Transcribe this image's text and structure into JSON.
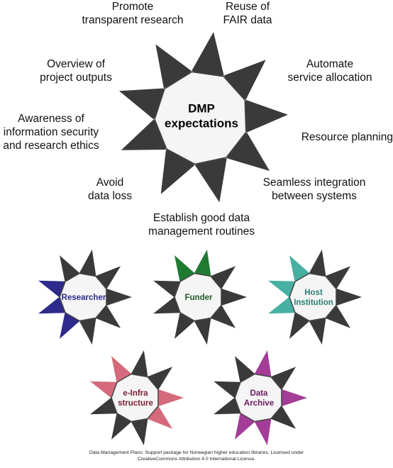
{
  "main_star": {
    "title": [
      "DMP",
      "expectations"
    ],
    "labels": [
      {
        "lines": [
          "Promote",
          "transparent research"
        ]
      },
      {
        "lines": [
          "Reuse of",
          "FAIR data"
        ]
      },
      {
        "lines": [
          "Automate",
          "service allocation"
        ]
      },
      {
        "lines": [
          "Resource planning"
        ]
      },
      {
        "lines": [
          "Seamless integration",
          "between systems"
        ]
      },
      {
        "lines": [
          "Establish good data",
          "management routines"
        ]
      },
      {
        "lines": [
          "Avoid",
          "data loss"
        ]
      },
      {
        "lines": [
          "Awareness of",
          "information security",
          "and research ethics"
        ]
      },
      {
        "lines": [
          "Overview of",
          "project outputs"
        ]
      }
    ]
  },
  "stakeholders": [
    {
      "title": [
        "Researcher"
      ],
      "accent": "#2e2a8c",
      "text_color": "#2e2a8c"
    },
    {
      "title": [
        "Funder"
      ],
      "accent": "#1f7a32",
      "text_color": "#1f5a28"
    },
    {
      "title": [
        "Host",
        "Institution"
      ],
      "accent": "#46b0a2",
      "text_color": "#2a7f76"
    },
    {
      "title": [
        "e-Infra",
        "structure"
      ],
      "accent": "#d46a7c",
      "text_color": "#7a1f33"
    },
    {
      "title": [
        "Data",
        "Archive"
      ],
      "accent": "#a43d97",
      "text_color": "#6a1a60"
    }
  ],
  "colors": {
    "spike_dark": "#3a3a3a",
    "center_fill": "#f5f5f5",
    "center_stroke": "#444444"
  },
  "footer": {
    "line1": "Data Management Plans: Support package for Norwegian higher education libraries. Licensed under",
    "line2": "CreativeCommons Attribution 4.0 International License."
  }
}
